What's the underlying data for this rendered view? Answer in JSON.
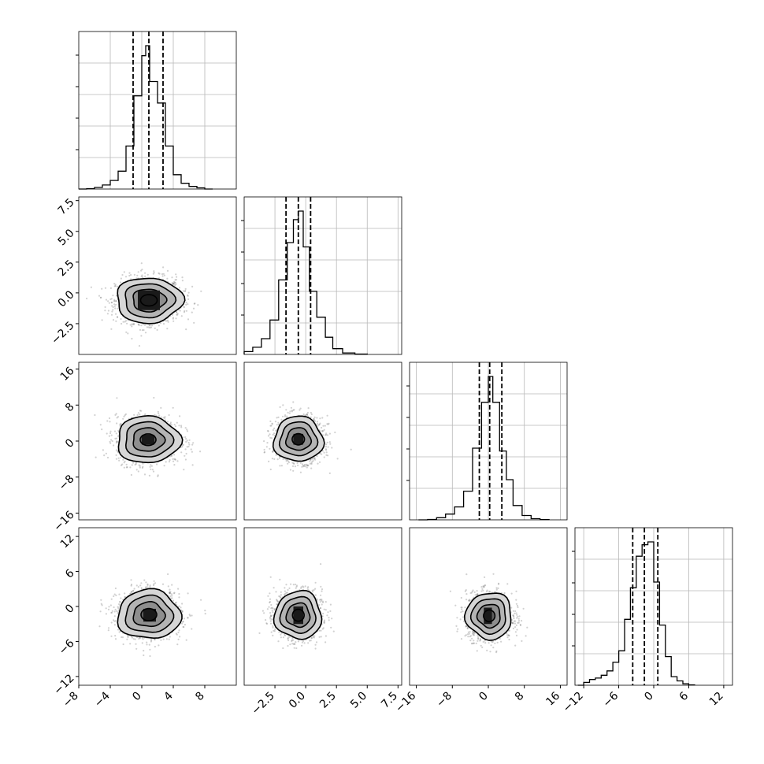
{
  "chart_data": {
    "type": "corner",
    "title": "",
    "n_params": 4,
    "grid": true,
    "quantile_lines": "dashed",
    "params": [
      {
        "range": [
          -8.0,
          12.0
        ],
        "ticks": [
          -8,
          -4,
          0,
          4,
          8
        ],
        "tick_labels": [
          "−8",
          "−4",
          "0",
          "4",
          "8"
        ],
        "quantiles": [
          -1.1,
          0.9,
          2.7
        ],
        "hist_bins": [
          [
            -8.0,
            -7.0,
            0.0
          ],
          [
            -7.0,
            -6.0,
            0.003
          ],
          [
            -6.0,
            -5.0,
            0.011
          ],
          [
            -5.0,
            -4.0,
            0.028
          ],
          [
            -4.0,
            -3.0,
            0.06
          ],
          [
            -3.0,
            -2.0,
            0.125
          ],
          [
            -2.0,
            -1.0,
            0.3
          ],
          [
            -1.0,
            0.0,
            0.65
          ],
          [
            0.0,
            0.5,
            0.93
          ],
          [
            0.5,
            1.0,
            1.0
          ],
          [
            1.0,
            2.0,
            0.75
          ],
          [
            2.0,
            3.0,
            0.6
          ],
          [
            3.0,
            4.0,
            0.3
          ],
          [
            4.0,
            5.0,
            0.1
          ],
          [
            5.0,
            6.0,
            0.04
          ],
          [
            6.0,
            7.0,
            0.018
          ],
          [
            7.0,
            8.0,
            0.008
          ],
          [
            8.0,
            9.0,
            0.0
          ]
        ]
      },
      {
        "range": [
          -5.0,
          7.8
        ],
        "ticks": [
          -2.5,
          0.0,
          2.5,
          5.0,
          7.5
        ],
        "tick_labels": [
          "−2.5",
          "0.0",
          "2.5",
          "5.0",
          "7.5"
        ],
        "quantiles": [
          -1.6,
          -0.6,
          0.4
        ],
        "hist_bins": [
          [
            -5.0,
            -4.3,
            0.02
          ],
          [
            -4.3,
            -3.6,
            0.05
          ],
          [
            -3.6,
            -2.9,
            0.11
          ],
          [
            -2.9,
            -2.2,
            0.24
          ],
          [
            -2.2,
            -1.5,
            0.52
          ],
          [
            -1.5,
            -1.0,
            0.78
          ],
          [
            -1.0,
            -0.6,
            0.94
          ],
          [
            -0.6,
            -0.2,
            1.0
          ],
          [
            -0.2,
            0.3,
            0.75
          ],
          [
            0.3,
            0.9,
            0.44
          ],
          [
            0.9,
            1.6,
            0.26
          ],
          [
            1.6,
            2.2,
            0.12
          ],
          [
            2.2,
            3.0,
            0.04
          ],
          [
            3.0,
            4.0,
            0.01
          ],
          [
            4.0,
            5.0,
            0.003
          ]
        ]
      },
      {
        "range": [
          -17.5,
          17.5
        ],
        "ticks": [
          -16,
          -8,
          0,
          8,
          16
        ],
        "tick_labels": [
          "−16",
          "−8",
          "0",
          "8",
          "16"
        ],
        "quantiles": [
          -2.0,
          0.3,
          3.0
        ],
        "hist_bins": [
          [
            -15.5,
            -13.5,
            0.0
          ],
          [
            -13.5,
            -11.5,
            0.003
          ],
          [
            -11.5,
            -9.5,
            0.015
          ],
          [
            -9.5,
            -7.5,
            0.04
          ],
          [
            -7.5,
            -5.5,
            0.09
          ],
          [
            -5.5,
            -3.5,
            0.2
          ],
          [
            -3.5,
            -1.5,
            0.5
          ],
          [
            -1.5,
            0.0,
            0.82
          ],
          [
            0.0,
            1.0,
            1.0
          ],
          [
            1.0,
            2.5,
            0.82
          ],
          [
            2.5,
            4.0,
            0.48
          ],
          [
            4.0,
            5.5,
            0.28
          ],
          [
            5.5,
            7.5,
            0.1
          ],
          [
            7.5,
            9.5,
            0.03
          ],
          [
            9.5,
            11.5,
            0.008
          ],
          [
            11.5,
            13.5,
            0.002
          ]
        ]
      },
      {
        "range": [
          -13.5,
          13.5
        ],
        "ticks": [
          -12,
          -6,
          0,
          6,
          12
        ],
        "tick_labels": [
          "−12",
          "−6",
          "0",
          "6",
          "12"
        ],
        "quantiles": [
          -3.6,
          -1.6,
          0.7
        ],
        "hist_bins": [
          [
            -13.0,
            -12.0,
            0.0
          ],
          [
            -12.0,
            -11.0,
            0.02
          ],
          [
            -11.0,
            -10.0,
            0.04
          ],
          [
            -10.0,
            -9.0,
            0.05
          ],
          [
            -9.0,
            -8.0,
            0.07
          ],
          [
            -8.0,
            -7.0,
            0.1
          ],
          [
            -7.0,
            -6.0,
            0.16
          ],
          [
            -6.0,
            -5.0,
            0.24
          ],
          [
            -5.0,
            -4.0,
            0.46
          ],
          [
            -4.0,
            -3.0,
            0.68
          ],
          [
            -3.0,
            -2.0,
            0.9
          ],
          [
            -2.0,
            -1.0,
            0.98
          ],
          [
            -1.0,
            0.0,
            1.0
          ],
          [
            0.0,
            1.0,
            0.72
          ],
          [
            1.0,
            2.0,
            0.42
          ],
          [
            2.0,
            3.0,
            0.2
          ],
          [
            3.0,
            4.0,
            0.06
          ],
          [
            4.0,
            5.0,
            0.03
          ],
          [
            5.0,
            6.0,
            0.01
          ],
          [
            6.0,
            7.0,
            0.003
          ]
        ]
      }
    ],
    "pairs": [
      {
        "row": 1,
        "col": 0,
        "center": [
          0.9,
          -0.6
        ],
        "sigma": [
          2.1,
          0.92
        ],
        "contours": [
          0.5,
          1.0,
          1.5,
          2.0
        ],
        "core": [
          [
            -0.5,
            2.3,
            -1.4,
            0.2
          ]
        ]
      },
      {
        "row": 2,
        "col": 0,
        "center": [
          0.8,
          0.3
        ],
        "sigma": [
          2.0,
          2.6
        ],
        "contours": [
          0.5,
          1.0,
          1.5,
          2.0
        ],
        "core": [
          [
            0.0,
            1.6,
            -0.8,
            1.4
          ]
        ]
      },
      {
        "row": 2,
        "col": 1,
        "center": [
          -0.6,
          0.4
        ],
        "sigma": [
          1.0,
          2.5
        ],
        "contours": [
          0.5,
          1.0,
          1.5,
          2.0
        ],
        "core": [
          [
            -1.0,
            -0.2,
            -0.8,
            1.6
          ]
        ]
      },
      {
        "row": 3,
        "col": 0,
        "center": [
          0.9,
          -1.4
        ],
        "sigma": [
          2.0,
          2.1
        ],
        "contours": [
          0.5,
          1.0,
          1.5,
          2.0
        ],
        "core": [
          [
            0.2,
            1.8,
            -2.6,
            -0.4
          ]
        ]
      },
      {
        "row": 3,
        "col": 1,
        "center": [
          -0.6,
          -1.5
        ],
        "sigma": [
          0.95,
          2.05
        ],
        "contours": [
          0.5,
          1.0,
          1.5,
          2.0
        ],
        "core": [
          [
            -1.0,
            -0.2,
            -3.0,
            0.0
          ]
        ]
      },
      {
        "row": 3,
        "col": 2,
        "center": [
          0.2,
          -1.6
        ],
        "sigma": [
          2.55,
          2.0
        ],
        "contours": [
          0.5,
          1.0,
          1.5,
          2.0
        ],
        "core": [
          [
            -1.0,
            0.8,
            -3.0,
            -0.2
          ]
        ]
      }
    ]
  }
}
